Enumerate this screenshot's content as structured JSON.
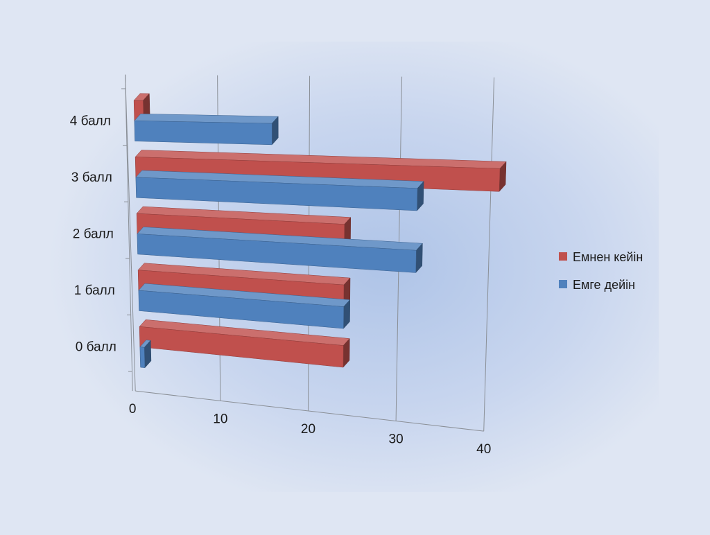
{
  "chart_data": {
    "type": "bar",
    "orientation": "horizontal",
    "style": "3d",
    "categories": [
      "4 балл",
      "3 балл",
      "2 балл",
      "1 балл",
      "0 балл"
    ],
    "series": [
      {
        "name": "Емнен кейін",
        "color": "#c0504d",
        "values": [
          1,
          40,
          23,
          23,
          23
        ]
      },
      {
        "name": "Емге дейін",
        "color": "#4f81bd",
        "values": [
          15,
          31,
          31,
          23,
          0.5
        ]
      }
    ],
    "x_ticks": [
      "0",
      "10",
      "20",
      "30",
      "40"
    ],
    "xlim": [
      0,
      40
    ],
    "grid": true,
    "legend_position": "right"
  }
}
